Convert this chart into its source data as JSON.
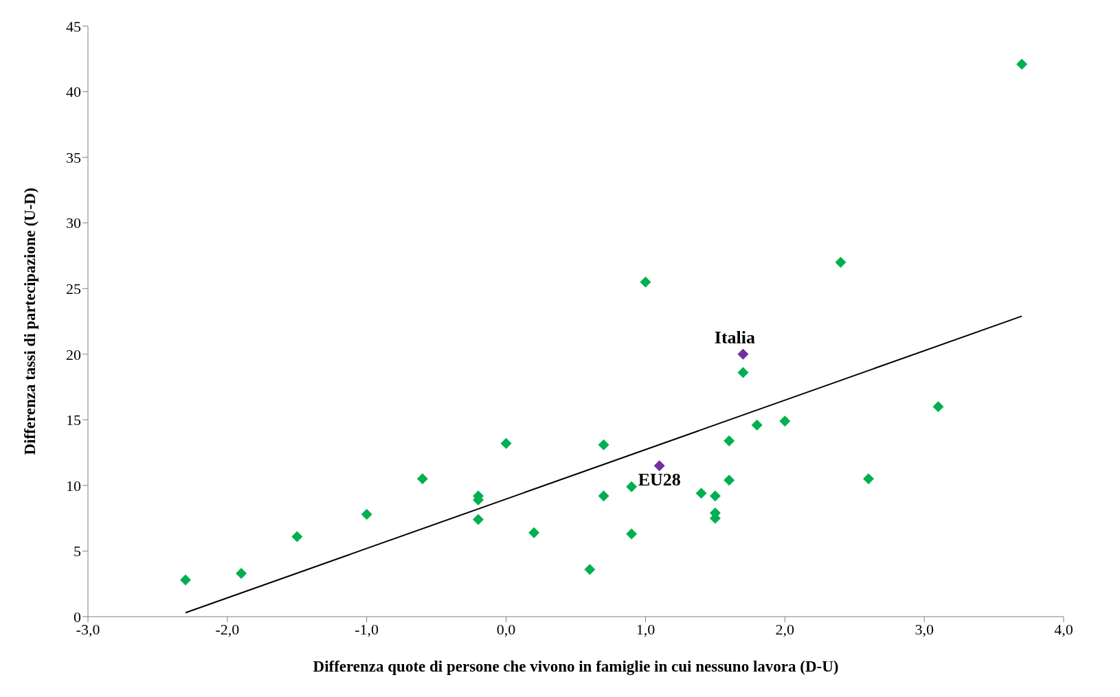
{
  "chart_data": {
    "type": "scatter",
    "xlabel": "Differenza quote di persone che vivono in famiglie in cui nessuno lavora (D-U)",
    "ylabel": "Differenza tassi di partecipazione (U-D)",
    "xlim": [
      -3,
      4
    ],
    "xticks": [
      {
        "value": -3,
        "label": "-3,0"
      },
      {
        "value": -2,
        "label": "-2,0"
      },
      {
        "value": -1,
        "label": "-1,0"
      },
      {
        "value": 0,
        "label": "0,0"
      },
      {
        "value": 1,
        "label": "1,0"
      },
      {
        "value": 2,
        "label": "2,0"
      },
      {
        "value": 3,
        "label": "3,0"
      },
      {
        "value": 4,
        "label": "4,0"
      }
    ],
    "ylim": [
      0,
      45
    ],
    "yticks": [
      0,
      5,
      10,
      15,
      20,
      25,
      30,
      35,
      40,
      45
    ],
    "grid": false,
    "legend": false,
    "marker": "diamond",
    "series": [
      {
        "color": "#00b050",
        "x": [
          -2.3,
          -1.9,
          -1.5,
          -1.0,
          -0.6,
          -0.2,
          -0.2,
          -0.2,
          0.0,
          0.2,
          0.6,
          0.7,
          0.7,
          0.9,
          0.9,
          1.0,
          1.4,
          1.5,
          1.5,
          1.5,
          1.6,
          1.6,
          1.7,
          1.8,
          2.0,
          2.4,
          2.6,
          3.1,
          3.7
        ],
        "values": [
          2.8,
          3.3,
          6.1,
          7.8,
          10.5,
          9.2,
          8.9,
          7.4,
          13.2,
          6.4,
          3.6,
          13.1,
          9.2,
          9.9,
          6.3,
          25.5,
          9.4,
          9.2,
          7.9,
          7.5,
          13.4,
          10.4,
          18.6,
          14.6,
          14.9,
          27.0,
          10.5,
          16.0,
          42.1
        ]
      },
      {
        "color": "#7030a0",
        "x": [
          1.7,
          1.1
        ],
        "values": [
          20.0,
          11.5
        ]
      },
      {
        "type": "line",
        "color": "#000000",
        "marker": "none",
        "x": [
          -2.3,
          3.7
        ],
        "values": [
          0.3,
          22.9
        ]
      }
    ],
    "annotations": [
      {
        "text": "Italia",
        "x": 1.7,
        "y": 20.0
      },
      {
        "text": "EU28",
        "x": 1.1,
        "y": 11.5
      }
    ]
  }
}
